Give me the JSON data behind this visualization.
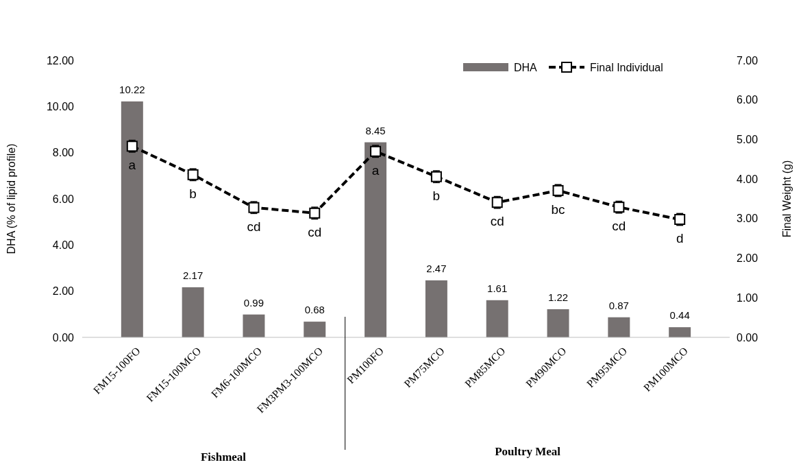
{
  "chart_data": {
    "type": "bar",
    "categories": [
      "FM15-100FO",
      "FM15-100MCO",
      "FM6-100MCO",
      "FM3PM3-100MCO",
      "PM100FO",
      "PM75MCO",
      "PM85MCO",
      "PM90MCO",
      "PM95MCO",
      "PM100MCO"
    ],
    "series": [
      {
        "name": "DHA",
        "color": "#767171",
        "values": [
          10.22,
          2.17,
          0.99,
          0.68,
          8.45,
          2.47,
          1.61,
          1.22,
          0.87,
          0.44
        ],
        "value_labels": [
          "10.22",
          "2.17",
          "0.99",
          "0.68",
          "8.45",
          "2.47",
          "1.61",
          "1.22",
          "0.87",
          "0.44"
        ]
      },
      {
        "name": "Final Individual",
        "type": "line",
        "axis": "y2",
        "color": "#000000",
        "marker": "square",
        "line_style": "dashed",
        "values": [
          4.83,
          4.11,
          3.28,
          3.14,
          4.7,
          4.06,
          3.41,
          3.71,
          3.29,
          2.98
        ],
        "errors": [
          0.15,
          0.15,
          0.15,
          0.15,
          0.15,
          0.15,
          0.15,
          0.15,
          0.15,
          0.15
        ],
        "value_labels": [
          "a",
          "b",
          "cd",
          "cd",
          "a",
          "b",
          "cd",
          "bc",
          "cd",
          "d"
        ]
      }
    ],
    "ylabel": "DHA  (% of lipid profile)",
    "y2label": "Final Weight (g)",
    "ylim": [
      0,
      12
    ],
    "yticks": [
      {
        "value": 0,
        "label": "0.00"
      },
      {
        "value": 2,
        "label": "2.00"
      },
      {
        "value": 4,
        "label": "4.00"
      },
      {
        "value": 6,
        "label": "6.00"
      },
      {
        "value": 8,
        "label": "8.00"
      },
      {
        "value": 10,
        "label": "10.00"
      },
      {
        "value": 12,
        "label": "12.00"
      }
    ],
    "y2lim": [
      0,
      7
    ],
    "y2ticks": [
      {
        "value": 0,
        "label": "0.00"
      },
      {
        "value": 1,
        "label": "1.00"
      },
      {
        "value": 2,
        "label": "2.00"
      },
      {
        "value": 3,
        "label": "3.00"
      },
      {
        "value": 4,
        "label": "4.00"
      },
      {
        "value": 5,
        "label": "5.00"
      },
      {
        "value": 6,
        "label": "6.00"
      },
      {
        "value": 7,
        "label": "7.00"
      }
    ],
    "annotations": [
      "Fishmeal",
      "Poultry Meal"
    ],
    "grid": false,
    "legend": "top right"
  }
}
